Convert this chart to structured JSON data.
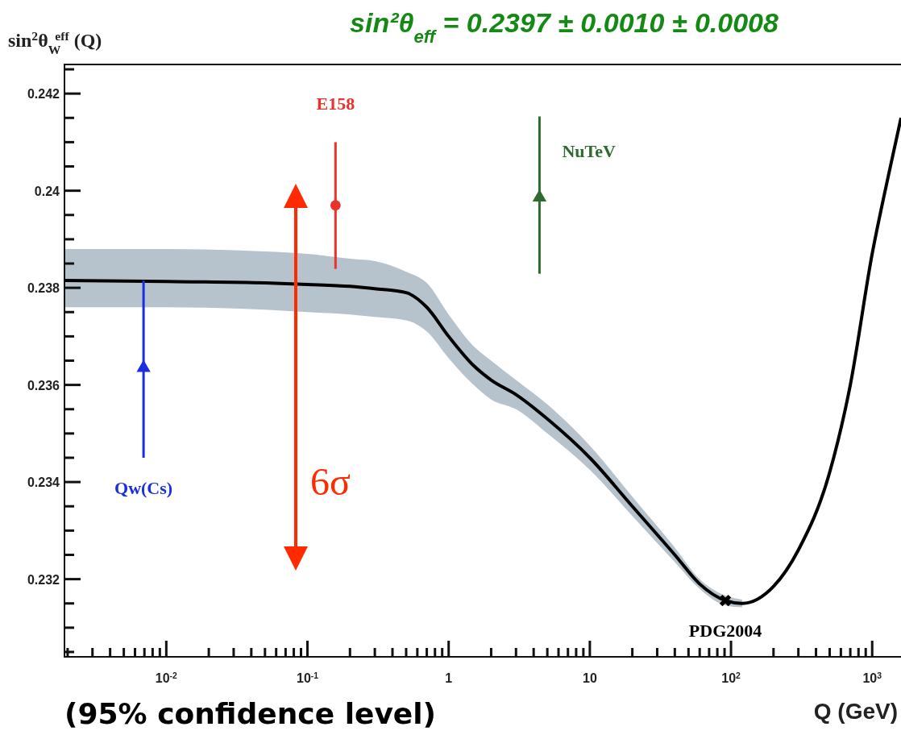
{
  "chart_data": {
    "type": "scatter",
    "title": "sin²θ$_{eff}$ = 0.2397 ± 0.0010 ± 0.0008",
    "xlabel": "Q (GeV)",
    "ylabel": "sin$^{2}$θ$_{W}$$^{eff}$ (Q)",
    "log": "x",
    "xlim": [
      0.0019,
      1600
    ],
    "ylim": [
      0.2304,
      0.2426
    ],
    "xticks": [
      {
        "value": 0.002,
        "label": null
      },
      {
        "value": 0.003,
        "label": null
      },
      {
        "value": 0.004,
        "label": null
      },
      {
        "value": 0.005,
        "label": null
      },
      {
        "value": 0.006,
        "label": null
      },
      {
        "value": 0.007,
        "label": null
      },
      {
        "value": 0.008,
        "label": null
      },
      {
        "value": 0.009,
        "label": null
      },
      {
        "value": 0.01,
        "label": "10$^{-2}$"
      },
      {
        "value": 0.02,
        "label": null
      },
      {
        "value": 0.03,
        "label": null
      },
      {
        "value": 0.04,
        "label": null
      },
      {
        "value": 0.05,
        "label": null
      },
      {
        "value": 0.06,
        "label": null
      },
      {
        "value": 0.07,
        "label": null
      },
      {
        "value": 0.08,
        "label": null
      },
      {
        "value": 0.09,
        "label": null
      },
      {
        "value": 0.1,
        "label": "10$^{-1}$"
      },
      {
        "value": 0.2,
        "label": null
      },
      {
        "value": 0.3,
        "label": null
      },
      {
        "value": 0.4,
        "label": null
      },
      {
        "value": 0.5,
        "label": null
      },
      {
        "value": 0.6,
        "label": null
      },
      {
        "value": 0.7,
        "label": null
      },
      {
        "value": 0.8,
        "label": null
      },
      {
        "value": 0.9,
        "label": null
      },
      1,
      {
        "value": 2,
        "label": null
      },
      {
        "value": 3,
        "label": null
      },
      {
        "value": 4,
        "label": null
      },
      {
        "value": 5,
        "label": null
      },
      {
        "value": 6,
        "label": null
      },
      {
        "value": 7,
        "label": null
      },
      {
        "value": 8,
        "label": null
      },
      {
        "value": 9,
        "label": null
      },
      10,
      {
        "value": 20,
        "label": null
      },
      {
        "value": 30,
        "label": null
      },
      {
        "value": 40,
        "label": null
      },
      {
        "value": 50,
        "label": null
      },
      {
        "value": 60,
        "label": null
      },
      {
        "value": 70,
        "label": null
      },
      {
        "value": 80,
        "label": null
      },
      {
        "value": 90,
        "label": null
      },
      {
        "value": 100,
        "label": "10$^{2}$"
      },
      {
        "value": 200,
        "label": null
      },
      {
        "value": 300,
        "label": null
      },
      {
        "value": 400,
        "label": null
      },
      {
        "value": 500,
        "label": null
      },
      {
        "value": 600,
        "label": null
      },
      {
        "value": 700,
        "label": null
      },
      {
        "value": 800,
        "label": null
      },
      {
        "value": 900,
        "label": null
      },
      {
        "value": 1000,
        "label": "10$^{3}$"
      }
    ],
    "yticks": [
      {
        "value": 0.2305,
        "label": null
      },
      {
        "value": 0.231,
        "label": null
      },
      {
        "value": 0.2315,
        "label": null
      },
      0.232,
      {
        "value": 0.2325,
        "label": null
      },
      {
        "value": 0.233,
        "label": null
      },
      {
        "value": 0.2335,
        "label": null
      },
      0.234,
      {
        "value": 0.2345,
        "label": null
      },
      {
        "value": 0.235,
        "label": null
      },
      {
        "value": 0.2355,
        "label": null
      },
      0.236,
      {
        "value": 0.2365,
        "label": null
      },
      {
        "value": 0.237,
        "label": null
      },
      {
        "value": 0.2375,
        "label": null
      },
      0.238,
      {
        "value": 0.2385,
        "label": null
      },
      {
        "value": 0.239,
        "label": null
      },
      {
        "value": 0.2395,
        "label": null
      },
      0.24,
      {
        "value": 0.2405,
        "label": null
      },
      {
        "value": 0.241,
        "label": null
      },
      {
        "value": 0.2415,
        "label": null
      },
      0.242,
      {
        "value": 0.2425,
        "label": null
      }
    ],
    "grid": false,
    "legend": false,
    "series": [
      {
        "type": "line",
        "color": "#000000",
        "marker": "none",
        "line_style": "solid",
        "x": [
          0.0019,
          0.01,
          0.05,
          0.1,
          0.2,
          0.3,
          0.5,
          0.7,
          1,
          1.5,
          2,
          3,
          5,
          10,
          20,
          40,
          60,
          91.19,
          120,
          200,
          300,
          500,
          700,
          1000,
          1300,
          1600
        ],
        "values": [
          0.23815,
          0.23813,
          0.2381,
          0.23807,
          0.23803,
          0.23798,
          0.2379,
          0.2376,
          0.237,
          0.2364,
          0.2361,
          0.2358,
          0.2353,
          0.2345,
          0.2335,
          0.2325,
          0.2319,
          0.23156,
          0.2315,
          0.23185,
          0.2326,
          0.2342,
          0.236,
          0.2387,
          0.2403,
          0.2415
        ],
        "lower": [
          0.2376,
          0.2376,
          0.23755,
          0.2375,
          0.23745,
          0.2374,
          0.23733,
          0.2371,
          0.23655,
          0.236,
          0.2357,
          0.2355,
          0.235,
          0.23425,
          0.2333,
          0.23235,
          0.2318,
          0.23146,
          0.23142,
          null,
          null,
          null,
          null,
          null,
          null,
          null
        ],
        "upper": [
          0.2388,
          0.2388,
          0.23875,
          0.2387,
          0.2386,
          0.23855,
          0.23833,
          0.2381,
          0.23745,
          0.2368,
          0.2365,
          0.2361,
          0.2356,
          0.23475,
          0.2337,
          0.23265,
          0.232,
          0.23166,
          0.23158,
          null,
          null,
          null,
          null,
          null,
          null,
          null
        ]
      },
      {
        "name": "Qw(Cs)",
        "color": "#1a2ee0",
        "marker": "triangle",
        "x": [
          0.0069
        ],
        "values": [
          0.23635
        ],
        "errors": [
          [
            0.2345,
            0.23815
          ]
        ]
      },
      {
        "name": "E158",
        "color": "#e8332a",
        "marker": "circle",
        "x": [
          0.158
        ],
        "values": [
          0.2397
        ],
        "errors": [
          [
            0.23839,
            0.241
          ]
        ]
      },
      {
        "name": "NuTeV",
        "color": "#2e6b2e",
        "marker": "triangle",
        "x": [
          4.4
        ],
        "values": [
          0.23986
        ],
        "errors": [
          [
            0.23829,
            0.24153
          ]
        ]
      },
      {
        "name": "PDG2004",
        "color": "#000000",
        "marker": "cross",
        "x": [
          91.19
        ],
        "values": [
          0.23156
        ]
      }
    ],
    "annotations": [
      "(95% confidence level)",
      "6σ"
    ]
  }
}
